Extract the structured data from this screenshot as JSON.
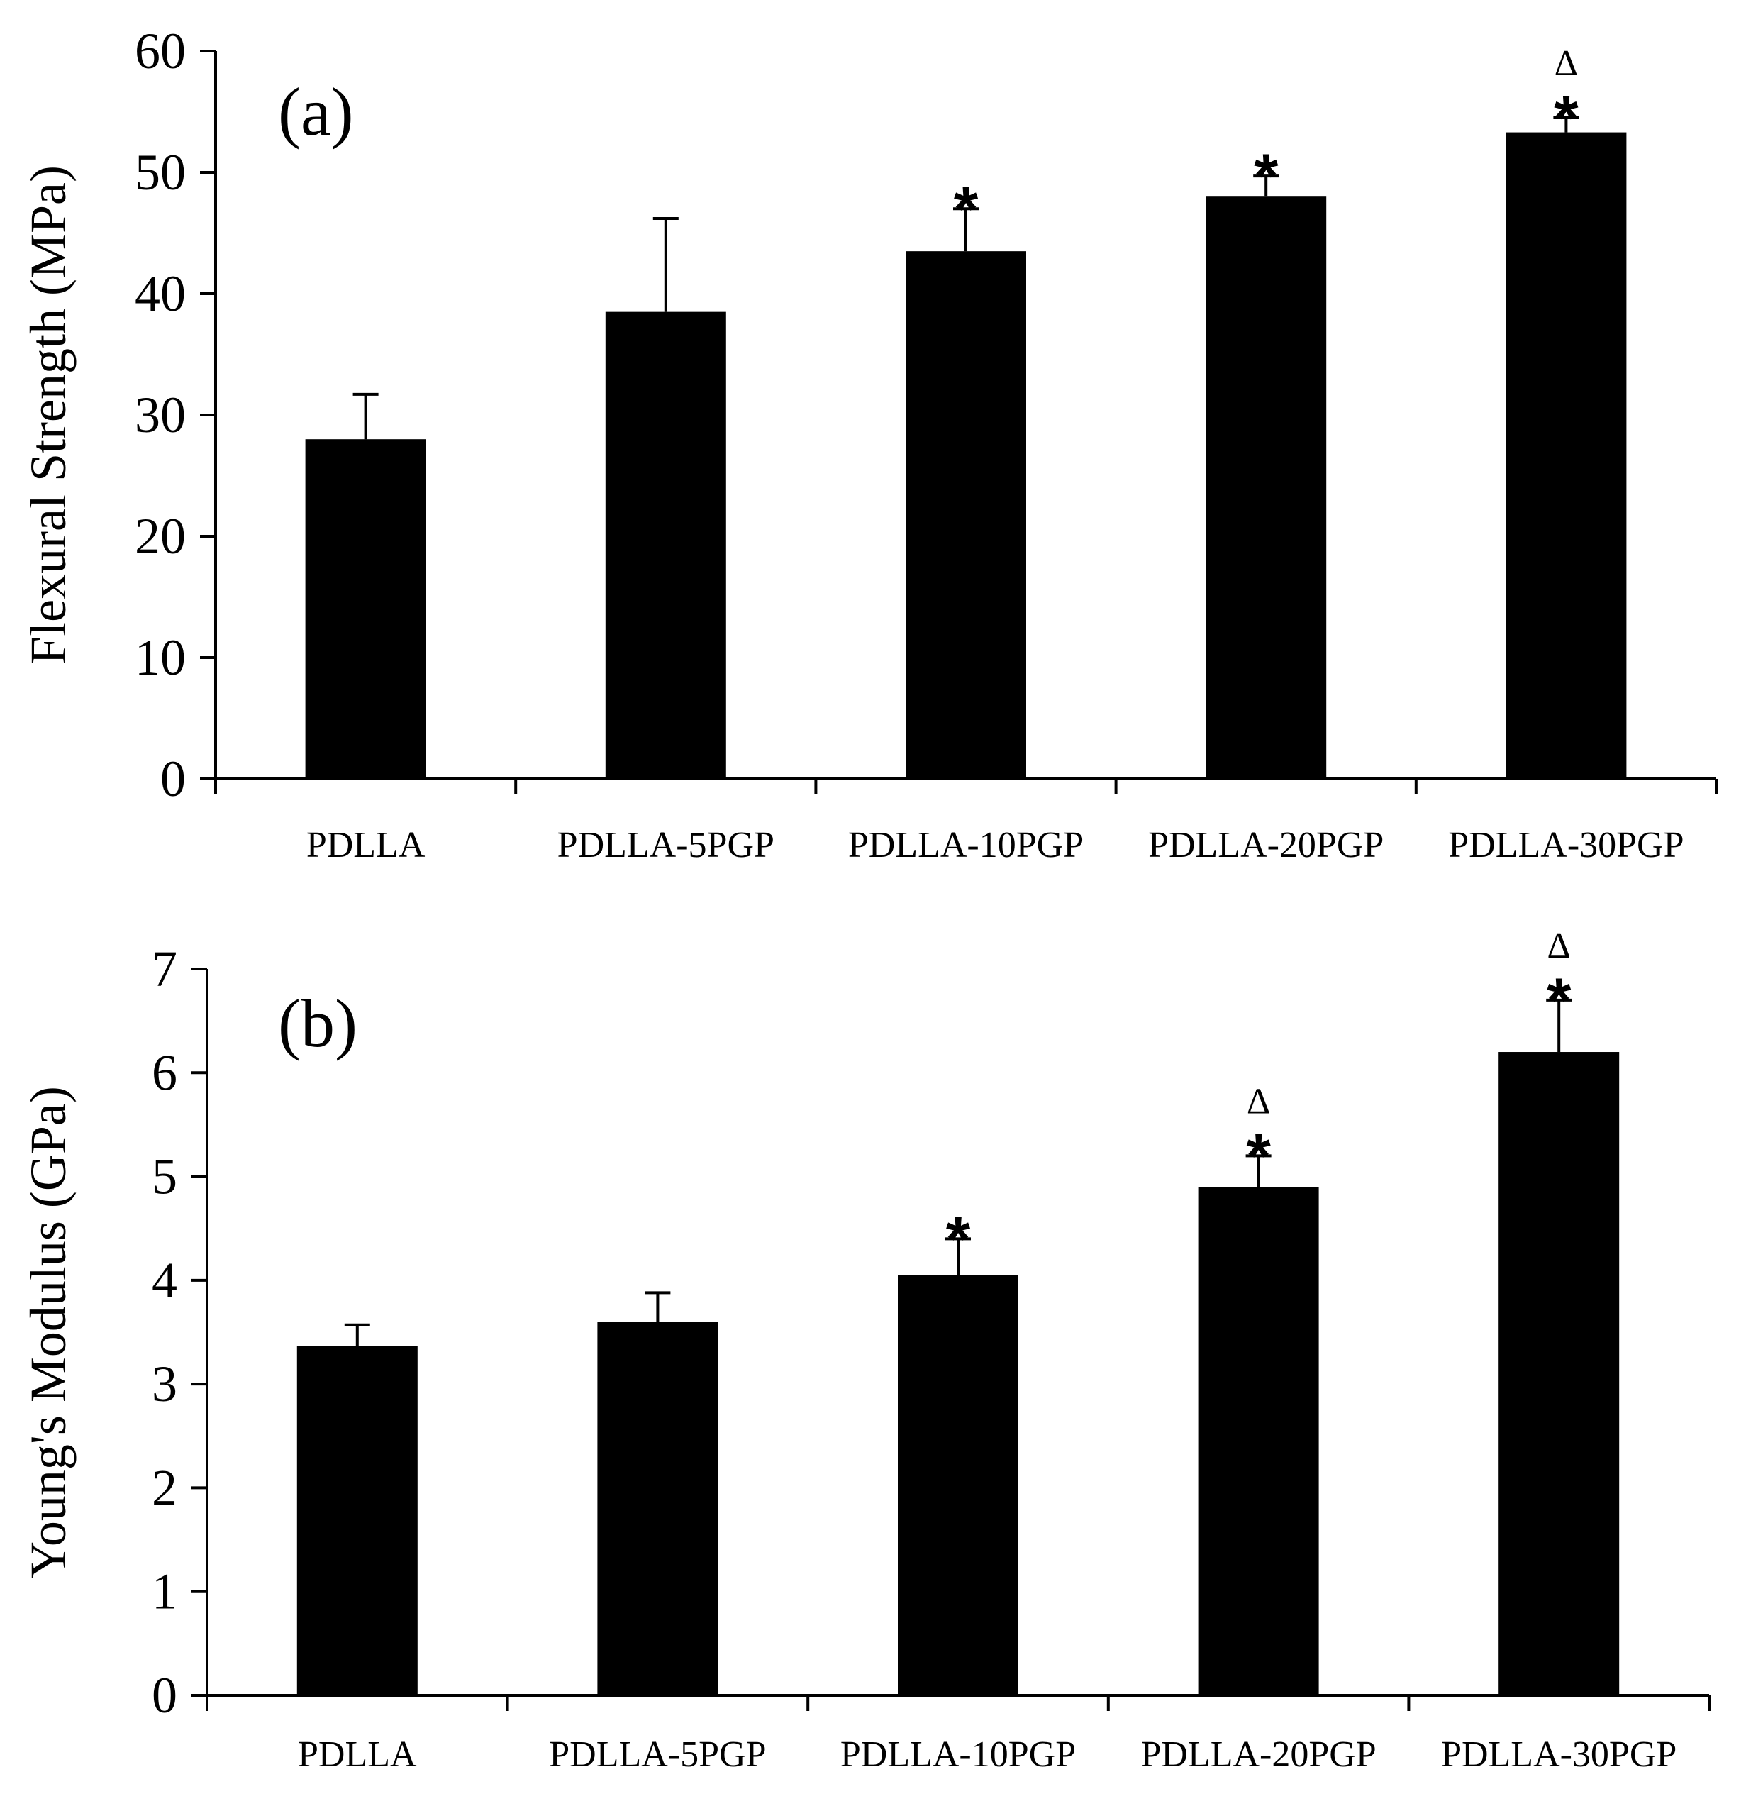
{
  "chart_data": [
    {
      "type": "bar",
      "panel_label": "(a)",
      "title": "",
      "xlabel": "",
      "ylabel": "Flexural Strength (MPa)",
      "ylim": [
        0,
        60
      ],
      "yticks": [
        0,
        10,
        20,
        30,
        40,
        50,
        60
      ],
      "categories": [
        "PDLLA",
        "PDLLA-5PGP",
        "PDLLA-10PGP",
        "PDLLA-20PGP",
        "PDLLA-30PGP"
      ],
      "values": [
        28,
        38.5,
        43.5,
        48,
        53.3
      ],
      "errors": [
        3.7,
        7.7,
        3.5,
        1.7,
        1.2
      ],
      "significance": [
        {
          "category": "PDLLA-10PGP",
          "marks": [
            "*"
          ]
        },
        {
          "category": "PDLLA-20PGP",
          "marks": [
            "*"
          ]
        },
        {
          "category": "PDLLA-30PGP",
          "marks": [
            "*",
            "Δ"
          ]
        }
      ],
      "bar_color": "#000000"
    },
    {
      "type": "bar",
      "panel_label": "(b)",
      "title": "",
      "xlabel": "",
      "ylabel": "Young's Modulus (GPa)",
      "ylim": [
        0,
        7
      ],
      "yticks": [
        0,
        1,
        2,
        3,
        4,
        5,
        6,
        7
      ],
      "categories": [
        "PDLLA",
        "PDLLA-5PGP",
        "PDLLA-10PGP",
        "PDLLA-20PGP",
        "PDLLA-30PGP"
      ],
      "values": [
        3.37,
        3.6,
        4.05,
        4.9,
        6.2
      ],
      "errors": [
        0.2,
        0.28,
        0.35,
        0.3,
        0.5
      ],
      "significance": [
        {
          "category": "PDLLA-10PGP",
          "marks": [
            "*"
          ]
        },
        {
          "category": "PDLLA-20PGP",
          "marks": [
            "*",
            "Δ"
          ]
        },
        {
          "category": "PDLLA-30PGP",
          "marks": [
            "*",
            "Δ"
          ]
        }
      ],
      "bar_color": "#000000"
    }
  ]
}
